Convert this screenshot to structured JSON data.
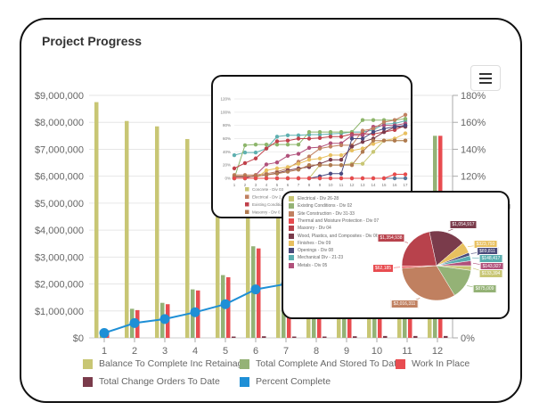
{
  "title": "Project Progress",
  "menu_icon": "hamburger-menu-icon",
  "chart_data": [
    {
      "type": "bar",
      "categories": [
        "1",
        "2",
        "3",
        "4",
        "5",
        "6",
        "7",
        "8",
        "9",
        "10",
        "11",
        "12"
      ],
      "y_ticks": [
        "$0",
        "$1,000,000",
        "$2,000,000",
        "$3,000,000",
        "$4,000,000",
        "$5,000,000",
        "$6,000,000",
        "$7,000,000",
        "$8,000,000",
        "$9,000,000"
      ],
      "ylim": [
        0,
        9000000
      ],
      "y2_ticks": [
        "0%",
        "20%",
        "40%",
        "60%",
        "80%",
        "100%",
        "120%",
        "140%",
        "160%",
        "180%"
      ],
      "y2lim": [
        0,
        180
      ],
      "y2label": "Percent Complete",
      "grid": true,
      "legend_placement": "bottom",
      "series": [
        {
          "name": "Balance To Complete Inc Retainage",
          "type": "bar",
          "color": "#c8c674",
          "values": [
            8750000,
            8050000,
            7850000,
            7380000,
            6900000,
            6300000,
            5600000,
            4900000,
            4100000,
            3300000,
            2000000,
            950000
          ]
        },
        {
          "name": "Total Complete And Stored To Date",
          "type": "bar",
          "color": "#94b276",
          "values": [
            280000,
            1080000,
            1300000,
            1800000,
            2330000,
            3400000,
            4100000,
            4800000,
            5500000,
            6200000,
            6900000,
            7500000
          ]
        },
        {
          "name": "Work In Place",
          "type": "bar",
          "color": "#e84c50",
          "values": [
            280000,
            1030000,
            1250000,
            1760000,
            2250000,
            3320000,
            4000000,
            4700000,
            5400000,
            6100000,
            7000000,
            7500000
          ]
        },
        {
          "name": "Total Change Orders To Date",
          "type": "bar",
          "color": "#7a3b4b",
          "values": [
            0,
            0,
            0,
            0,
            30000,
            60000,
            50000,
            50000,
            60000,
            70000,
            70000,
            70000
          ]
        },
        {
          "name": "Percent Complete",
          "type": "line",
          "axis": "right",
          "color": "#1e8fd6",
          "values": [
            3.6,
            11,
            14,
            19,
            25,
            36,
            40,
            46,
            53,
            60,
            68,
            75
          ]
        }
      ]
    },
    {
      "type": "line",
      "categories": [
        "1",
        "2",
        "3",
        "4",
        "5",
        "6",
        "7",
        "8",
        "9",
        "10",
        "11",
        "12",
        "13",
        "14",
        "15",
        "16",
        "17"
      ],
      "y_ticks": [
        "0%",
        "20%",
        "40%",
        "60%",
        "80%",
        "100%",
        "120%"
      ],
      "ylim": [
        0,
        120
      ],
      "legend": [
        {
          "name": "Concrete - Div 03",
          "color": "#c8c674"
        },
        {
          "name": "Electrical - Div 2",
          "color": "#c08060"
        },
        {
          "name": "Existing Conditio",
          "color": "#c0404a"
        },
        {
          "name": "Masonry - Div 0",
          "color": "#b07a50"
        }
      ],
      "series": [
        {
          "color": "#5fb0b0",
          "values": [
            35,
            39,
            39,
            45,
            63,
            65,
            65,
            66,
            66,
            67,
            68,
            70,
            70,
            73,
            82,
            83,
            87
          ]
        },
        {
          "color": "#8db56b",
          "values": [
            0,
            50,
            51,
            51,
            51,
            51,
            51,
            70,
            70,
            70,
            70,
            70,
            88,
            88,
            88,
            88,
            90
          ]
        },
        {
          "color": "#c0404a",
          "values": [
            15,
            23,
            30,
            45,
            56,
            57,
            60,
            60,
            61,
            63,
            63,
            67,
            67,
            67,
            70,
            73,
            80
          ]
        },
        {
          "color": "#b0507a",
          "values": [
            0,
            0,
            5,
            21,
            24,
            34,
            37,
            46,
            47,
            53,
            53,
            65,
            65,
            78,
            80,
            80,
            83
          ]
        },
        {
          "color": "#c08060",
          "values": [
            5,
            5,
            5,
            7,
            10,
            15,
            25,
            33,
            45,
            48,
            50,
            50,
            72,
            75,
            85,
            88,
            96
          ]
        },
        {
          "color": "#e8c060",
          "values": [
            0,
            0,
            0,
            12,
            15,
            17,
            22,
            28,
            30,
            35,
            35,
            42,
            45,
            52,
            57,
            60,
            68
          ]
        },
        {
          "color": "#c8c674",
          "values": [
            0,
            0,
            0,
            0,
            0,
            0,
            0,
            0,
            20,
            20,
            20,
            22,
            22,
            40,
            57,
            57,
            57
          ]
        },
        {
          "color": "#7a3a4a",
          "values": [
            2,
            2,
            3,
            5,
            8,
            12,
            15,
            17,
            22,
            28,
            28,
            48,
            55,
            60,
            70,
            77,
            78
          ]
        },
        {
          "color": "#4a4a80",
          "values": [
            0,
            0,
            0,
            0,
            0,
            0,
            0,
            0,
            3,
            7,
            7,
            60,
            60,
            70,
            75,
            78,
            80
          ]
        },
        {
          "color": "#b07a50",
          "values": [
            3,
            3,
            3,
            5,
            7,
            10,
            13,
            20,
            20,
            20,
            20,
            20,
            40,
            57,
            57,
            57,
            57
          ]
        },
        {
          "color": "#557799",
          "values": [
            0,
            0,
            0,
            0,
            0,
            0,
            0,
            0,
            0,
            0,
            0,
            0,
            0,
            0,
            0,
            0,
            0
          ]
        },
        {
          "color": "#e84a4a",
          "values": [
            0,
            0,
            0,
            0,
            0,
            0,
            0,
            0,
            0,
            0,
            0,
            0,
            0,
            0,
            0,
            6,
            6
          ]
        }
      ]
    },
    {
      "type": "pie",
      "slices": [
        {
          "name": "Wood, Plastics, and Composites - Div 06",
          "value": 1054917,
          "label": "$1,054,917",
          "color": "#7a3b4b"
        },
        {
          "name": "Finishes - Div 09",
          "value": 323793,
          "label": "$323,793",
          "color": "#e8c060"
        },
        {
          "name": "Openings - Div 08",
          "value": 89811,
          "label": "$89,811",
          "color": "#4a4a7a"
        },
        {
          "name": "Mechanical Div - 21-23",
          "value": 148417,
          "label": "$148,417",
          "color": "#5aaeb0"
        },
        {
          "name": "Metals - Div 05",
          "value": 143927,
          "label": "$143,927",
          "color": "#b0507a"
        },
        {
          "name": "Electrical - Div 26-28",
          "value": 133394,
          "label": "$133,394",
          "color": "#c8c674"
        },
        {
          "name": "Existing Conditions - Div 02",
          "value": 875009,
          "label": "$875,009",
          "color": "#94b276"
        },
        {
          "name": "Site Construction - Div 31-33",
          "value": 2016311,
          "label": "$2,016,311",
          "color": "#c08060"
        },
        {
          "name": "Thermal and Moisture Protection - Div 07",
          "value": 62185,
          "label": "$62,185",
          "color": "#e84c50"
        },
        {
          "name": "Masonry - Div 04",
          "value": 1354938,
          "label": "$1,354,938",
          "color": "#b8424c"
        }
      ],
      "legend_order": [
        5,
        6,
        7,
        8,
        9,
        0,
        1,
        2,
        3,
        4
      ]
    }
  ]
}
